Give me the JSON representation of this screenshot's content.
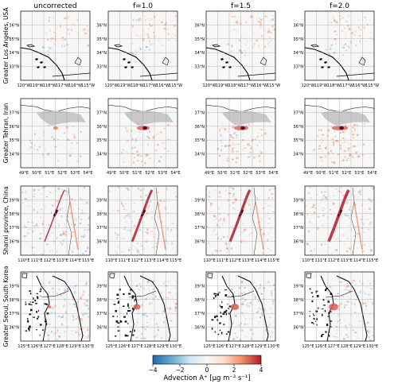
{
  "figure": {
    "columns": [
      "uncorrected",
      "f=1.0",
      "f=1.5",
      "f=2.0"
    ],
    "rows": [
      {
        "label": "Greater Los Angeles, USA",
        "lat_ticks": [
          "36°N",
          "35°N",
          "34°N",
          "33°N"
        ],
        "lon_ticks": [
          "120°W",
          "119°W",
          "118°W",
          "117°W",
          "116°W",
          "115°W"
        ],
        "theme": "la"
      },
      {
        "label": "Greater Tehran, Iran",
        "lat_ticks": [
          "37°N",
          "36°N",
          "35°N",
          "34°N"
        ],
        "lon_ticks": [
          "49°E",
          "50°E",
          "51°E",
          "52°E",
          "53°E",
          "54°E"
        ],
        "theme": "tehran"
      },
      {
        "label": "Shanxi province, China",
        "lat_ticks": [
          "39°N",
          "38°N",
          "37°N",
          "36°N"
        ],
        "lon_ticks": [
          "110°E",
          "111°E",
          "112°E",
          "113°E",
          "114°E",
          "115°E"
        ],
        "theme": "shanxi"
      },
      {
        "label": "Greater Seoul, South Korea",
        "lat_ticks": [
          "39°N",
          "38°N",
          "37°N",
          "36°N"
        ],
        "lon_ticks": [
          "125°E",
          "126°E",
          "127°E",
          "128°E",
          "129°E",
          "130°E"
        ],
        "theme": "seoul"
      }
    ],
    "colorbar": {
      "ticks": [
        "−4",
        "−2",
        "0",
        "2",
        "4"
      ],
      "label": "Advection A⁺ [μg m⁻² s⁻¹]",
      "range": [
        -4,
        4
      ],
      "colors": [
        "#2166ac",
        "#67a9cf",
        "#d1e5f0",
        "#f7f7f7",
        "#fddbc7",
        "#ef8a62",
        "#b2182b"
      ]
    }
  }
}
